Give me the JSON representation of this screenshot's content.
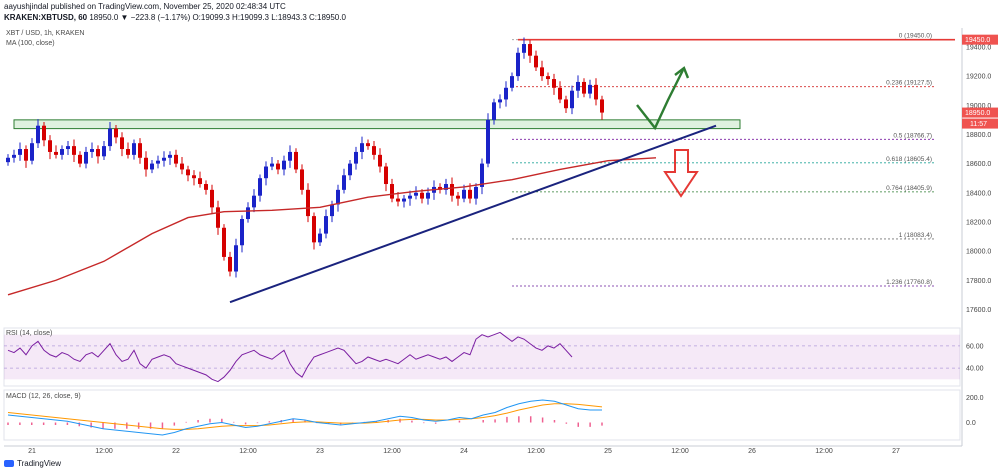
{
  "header": {
    "published": "aayushjindal published on TradingView.com, November 25, 2020 02:48:34 UTC",
    "symbol_line": "KRAKEN:XBTUSD, 60",
    "quote": "18950.0 ▼ −223.8 (−1.17%) O:19099.3 H:19099.3 L:18943.3 C:18950.0",
    "pair": "XBT / USD, 1h, KRAKEN",
    "ma_label": "MA (100, close)"
  },
  "footer": {
    "brand": "TradingView"
  },
  "chart_data": {
    "type": "candlestick",
    "symbol": "XBT / USD",
    "timeframe": "1h",
    "exchange": "KRAKEN",
    "price_axis": {
      "ticks": [
        17600,
        17800,
        18000,
        18200,
        18400,
        18600,
        18800,
        19000,
        19200,
        19400
      ],
      "tick_labels": [
        "17600.0",
        "17800.0",
        "18000.0",
        "18200.0",
        "18400.0",
        "18600.0",
        "18800.0",
        "19000.0",
        "19200.0",
        "19400.0"
      ],
      "ylim": [
        17500,
        19530
      ],
      "current_price_label": "18950.0",
      "countdown_label": "11:57",
      "top_label": "19450.0"
    },
    "time_axis": {
      "labels": [
        "21",
        "12:00",
        "22",
        "12:00",
        "23",
        "12:00",
        "24",
        "12:00",
        "25",
        "12:00",
        "26",
        "12:00",
        "27"
      ],
      "label_index": [
        0,
        12,
        24,
        36,
        48,
        60,
        72,
        84,
        96,
        108,
        120,
        132,
        144
      ]
    },
    "closes": [
      18640,
      18660,
      18700,
      18620,
      18740,
      18860,
      18760,
      18680,
      18660,
      18700,
      18720,
      18660,
      18600,
      18680,
      18700,
      18650,
      18720,
      18840,
      18780,
      18700,
      18660,
      18740,
      18640,
      18560,
      18600,
      18620,
      18640,
      18660,
      18600,
      18560,
      18520,
      18500,
      18460,
      18420,
      18300,
      18160,
      17960,
      17860,
      18040,
      18220,
      18300,
      18380,
      18500,
      18580,
      18600,
      18560,
      18620,
      18680,
      18560,
      18420,
      18240,
      18060,
      18120,
      18240,
      18320,
      18420,
      18520,
      18600,
      18680,
      18740,
      18720,
      18660,
      18580,
      18460,
      18360,
      18340,
      18360,
      18380,
      18400,
      18360,
      18400,
      18440,
      18420,
      18460,
      18380,
      18360,
      18420,
      18360,
      18440,
      18600,
      18900,
      19020,
      19040,
      19120,
      19200,
      19360,
      19420,
      19340,
      19260,
      19200,
      19180,
      19120,
      19040,
      18980,
      19100,
      19160,
      19080,
      19140,
      19040,
      18950
    ],
    "ma100": {
      "label": "MA (100, close)",
      "color": "#c62828",
      "points": [
        [
          0,
          17700
        ],
        [
          8,
          17800
        ],
        [
          16,
          17930
        ],
        [
          24,
          18120
        ],
        [
          30,
          18230
        ],
        [
          36,
          18270
        ],
        [
          44,
          18280
        ],
        [
          52,
          18300
        ],
        [
          60,
          18370
        ],
        [
          68,
          18410
        ],
        [
          76,
          18440
        ],
        [
          84,
          18490
        ],
        [
          92,
          18560
        ],
        [
          100,
          18620
        ],
        [
          108,
          18640
        ]
      ]
    },
    "trendline": {
      "color": "#1a237e",
      "points": [
        [
          37,
          17650
        ],
        [
          118,
          18860
        ]
      ]
    },
    "resistance_zone": {
      "low": 18840,
      "high": 18900,
      "x_start": 1,
      "x_end": 122,
      "color": "#4caf50"
    },
    "horizontal_line": {
      "value": 19450,
      "color": "#e53935"
    },
    "fibonacci": [
      {
        "ratio": "0",
        "price": 19450.0,
        "label": "0 (19450.0)"
      },
      {
        "ratio": "0.236",
        "price": 19127.5,
        "label": "0.236 (19127.5)"
      },
      {
        "ratio": "0.5",
        "price": 18766.7,
        "label": "0.5 (18766.7)"
      },
      {
        "ratio": "0.618",
        "price": 18605.4,
        "label": "0.618 (18605.4)"
      },
      {
        "ratio": "0.764",
        "price": 18405.9,
        "label": "0.764 (18405.9)"
      },
      {
        "ratio": "1",
        "price": 18083.4,
        "label": "1 (18083.4)"
      },
      {
        "ratio": "1.236",
        "price": 17760.8,
        "label": "1.236 (17760.8)"
      }
    ],
    "rsi": {
      "label": "RSI (14, close)",
      "ticks": [
        "60.00",
        "40.00"
      ],
      "tick_values": [
        60,
        40
      ],
      "ylim": [
        24,
        76
      ],
      "band": [
        30,
        70
      ],
      "values": [
        56,
        54,
        58,
        52,
        60,
        64,
        56,
        52,
        50,
        54,
        52,
        48,
        46,
        52,
        54,
        50,
        56,
        62,
        52,
        46,
        48,
        56,
        44,
        40,
        48,
        50,
        52,
        50,
        44,
        42,
        40,
        38,
        36,
        34,
        30,
        28,
        32,
        38,
        46,
        52,
        54,
        56,
        52,
        50,
        48,
        52,
        56,
        44,
        36,
        32,
        42,
        50,
        52,
        54,
        56,
        58,
        56,
        50,
        44,
        46,
        50,
        48,
        46,
        48,
        46,
        44,
        48,
        52,
        48,
        50,
        52,
        50,
        48,
        50,
        46,
        50,
        54,
        52,
        66,
        70,
        68,
        70,
        72,
        68,
        64,
        68,
        66,
        62,
        58,
        56,
        60,
        58,
        62,
        56,
        50
      ],
      "color": "#7b1fa2"
    },
    "macd": {
      "label": "MACD (12, 26, close, 9)",
      "ticks": [
        "200.0",
        "0.0"
      ],
      "tick_values": [
        200,
        0
      ],
      "ylim": [
        -140,
        260
      ],
      "macd_line": [
        60,
        50,
        40,
        30,
        20,
        10,
        -10,
        -30,
        -50,
        -60,
        -70,
        -80,
        -90,
        -100,
        -80,
        -50,
        -30,
        -10,
        0,
        -20,
        -40,
        -30,
        -10,
        10,
        30,
        20,
        0,
        -10,
        -20,
        -10,
        0,
        10,
        30,
        50,
        40,
        20,
        10,
        20,
        40,
        30,
        60,
        80,
        120,
        150,
        170,
        180,
        170,
        140,
        110,
        100,
        100
      ],
      "signal_line": [
        80,
        70,
        60,
        50,
        40,
        30,
        20,
        10,
        0,
        -10,
        -20,
        -30,
        -40,
        -50,
        -55,
        -55,
        -50,
        -40,
        -30,
        -25,
        -25,
        -25,
        -20,
        -10,
        0,
        5,
        5,
        0,
        -5,
        -5,
        -5,
        0,
        10,
        20,
        25,
        25,
        20,
        20,
        25,
        30,
        40,
        55,
        75,
        100,
        120,
        140,
        150,
        150,
        145,
        135,
        125
      ],
      "macd_color": "#2196f3",
      "signal_color": "#ff9800",
      "histogram_color": "#e91e63"
    },
    "annotations": [
      {
        "type": "arrow",
        "direction": "down",
        "color": "#e53935"
      },
      {
        "type": "arrow",
        "direction": "up",
        "color": "#2e7d32"
      }
    ]
  }
}
